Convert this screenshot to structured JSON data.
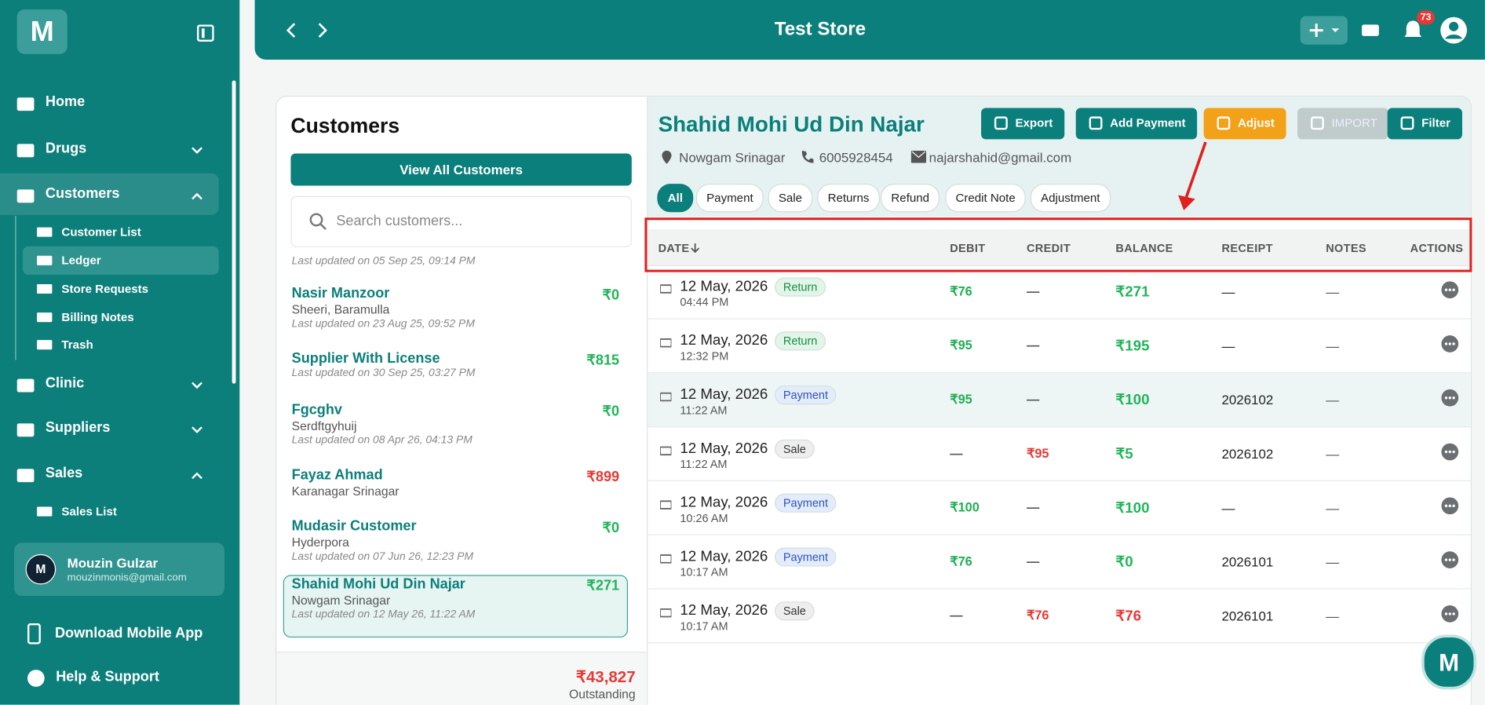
{
  "sidebar": {
    "logo": "M",
    "nav": [
      {
        "label": "Home",
        "chevron": "none"
      },
      {
        "label": "Drugs",
        "chevron": "down"
      },
      {
        "label": "Customers",
        "chevron": "up",
        "active": true
      },
      {
        "label": "Customer List",
        "sub": true
      },
      {
        "label": "Ledger",
        "sub": true,
        "active": true
      },
      {
        "label": "Store Requests",
        "sub": true
      },
      {
        "label": "Billing Notes",
        "sub": true
      },
      {
        "label": "Trash",
        "sub": true
      },
      {
        "label": "Clinic",
        "chevron": "down"
      },
      {
        "label": "Suppliers",
        "chevron": "down"
      },
      {
        "label": "Sales",
        "chevron": "up"
      },
      {
        "label": "Sales List",
        "sub": true
      }
    ],
    "user": {
      "initial": "M",
      "name": "Mouzin Gulzar",
      "email": "mouzinmonis@gmail.com"
    },
    "download": "Download Mobile App",
    "help": "Help & Support"
  },
  "topbar": {
    "title": "Test Store",
    "notifications": "73"
  },
  "customers": {
    "title": "Customers",
    "view_all": "View All Customers",
    "search_placeholder": "Search customers...",
    "cut_line": "Last updated on 05 Sep 25, 09:14 PM",
    "items": [
      {
        "name": "Nasir Manzoor",
        "address": "Sheeri, Baramulla",
        "updated": "Last updated on 23 Aug 25, 09:52 PM",
        "amount": "₹0",
        "color": "#22b45a"
      },
      {
        "name": "Supplier With License",
        "address": null,
        "updated": "Last updated on 30 Sep 25, 03:27 PM",
        "amount": "₹815",
        "color": "#22b45a"
      },
      {
        "name": "Fgcghv",
        "address": "Serdftgyhuij",
        "updated": "Last updated on 08 Apr 26, 04:13 PM",
        "amount": "₹0",
        "color": "#22b45a"
      },
      {
        "name": "Fayaz Ahmad",
        "address": "Karanagar Srinagar",
        "updated": null,
        "amount": "₹899",
        "color": "#e53935"
      },
      {
        "name": "Mudasir Customer",
        "address": "Hyderpora",
        "updated": "Last updated on 07 Jun 26, 12:23 PM",
        "amount": "₹0",
        "color": "#22b45a"
      },
      {
        "name": "Shahid Mohi Ud Din Najar",
        "address": "Nowgam Srinagar",
        "updated": "Last updated on 12 May 26, 11:22 AM",
        "amount": "₹271",
        "color": "#22b45a",
        "selected": true
      }
    ],
    "total": "₹43,827",
    "total_label": "Outstanding"
  },
  "ledger": {
    "name": "Shahid Mohi Ud Din Najar",
    "location": "Nowgam Srinagar",
    "phone": "6005928454",
    "email": "najarshahid@gmail.com",
    "buttons": [
      "Export",
      "Add Payment",
      "Adjust",
      "IMPORT",
      "Filter"
    ],
    "tabs": [
      "All",
      "Payment",
      "Sale",
      "Returns",
      "Refund",
      "Credit Note",
      "Adjustment"
    ],
    "headers": [
      "DATE",
      "DEBIT",
      "CREDIT",
      "BALANCE",
      "RECEIPT",
      "NOTES",
      "ACTIONS"
    ],
    "rows": [
      {
        "date": "12 May, 2026",
        "time": "04:44 PM",
        "type": "Return",
        "debit": "₹76",
        "credit": "—",
        "balance": "₹271",
        "balance_color": "#22b45a",
        "receipt": "—",
        "notes": "—"
      },
      {
        "date": "12 May, 2026",
        "time": "12:32 PM",
        "type": "Return",
        "debit": "₹95",
        "credit": "—",
        "balance": "₹195",
        "balance_color": "#22b45a",
        "receipt": "—",
        "notes": "—"
      },
      {
        "date": "12 May, 2026",
        "time": "11:22 AM",
        "type": "Payment",
        "debit": "₹95",
        "credit": "—",
        "balance": "₹100",
        "balance_color": "#22b45a",
        "receipt": "2026102",
        "notes": "—",
        "highlight": true
      },
      {
        "date": "12 May, 2026",
        "time": "11:22 AM",
        "type": "Sale",
        "debit": "—",
        "credit": "₹95",
        "balance": "₹5",
        "balance_color": "#22b45a",
        "receipt": "2026102",
        "notes": "—"
      },
      {
        "date": "12 May, 2026",
        "time": "10:26 AM",
        "type": "Payment",
        "debit": "₹100",
        "credit": "—",
        "balance": "₹100",
        "balance_color": "#22b45a",
        "receipt": "—",
        "notes": "—"
      },
      {
        "date": "12 May, 2026",
        "time": "10:17 AM",
        "type": "Payment",
        "debit": "₹76",
        "credit": "—",
        "balance": "₹0",
        "balance_color": "#22b45a",
        "receipt": "2026101",
        "notes": "—"
      },
      {
        "date": "12 May, 2026",
        "time": "10:17 AM",
        "type": "Sale",
        "debit": "—",
        "credit": "₹76",
        "balance": "₹76",
        "balance_color": "#e53935",
        "receipt": "2026101",
        "notes": "—"
      }
    ]
  }
}
